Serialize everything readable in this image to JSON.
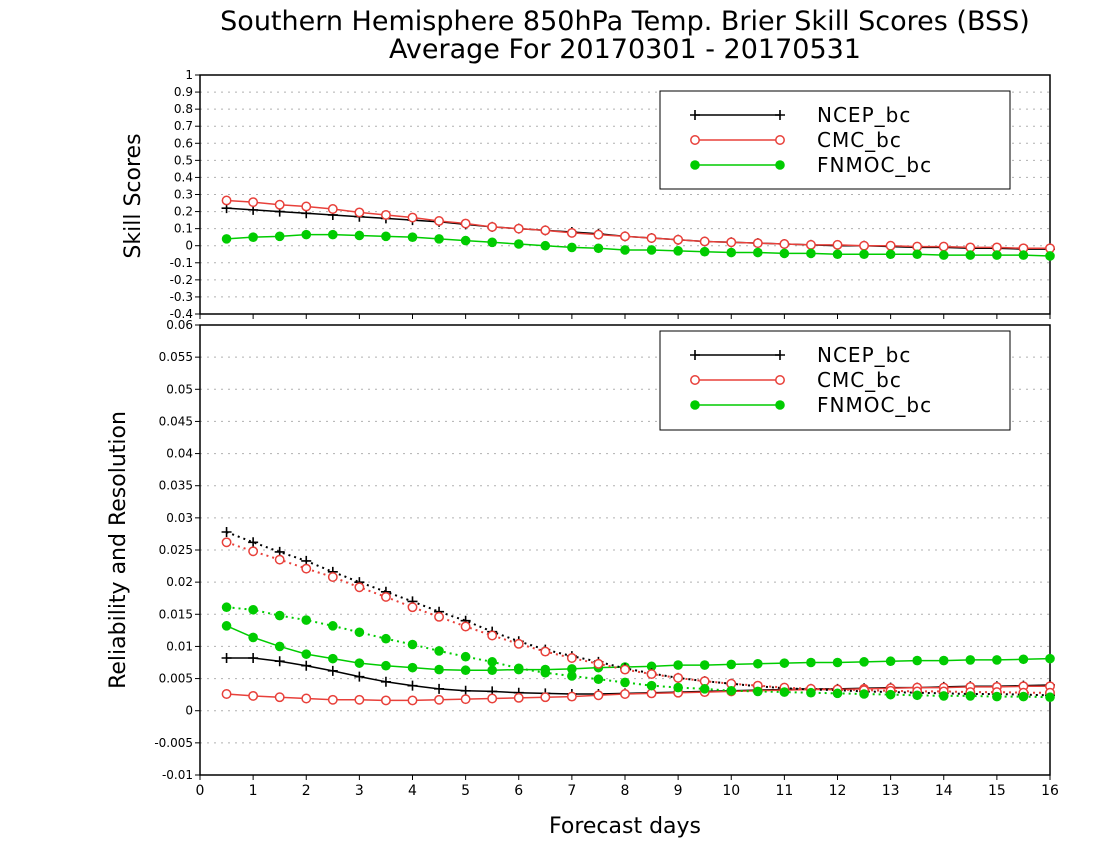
{
  "title_line1": "Southern Hemisphere 850hPa Temp. Brier Skill Scores (BSS)",
  "title_line2": "Average For 20170301 - 20170531",
  "xlabel": "Forecast days",
  "colors": {
    "NCEP_bc": "#000000",
    "CMC_bc": "#e8403a",
    "FNMOC_bc": "#00cc00"
  },
  "chart_data": [
    {
      "type": "line",
      "ylabel": "Skill Scores",
      "xlim": [
        0,
        16
      ],
      "ylim": [
        -0.4,
        1
      ],
      "x_ticks": [
        0,
        1,
        2,
        3,
        4,
        5,
        6,
        7,
        8,
        9,
        10,
        11,
        12,
        13,
        14,
        15,
        16
      ],
      "y_ticks": [
        "-0.4",
        "-0.3",
        "-0.2",
        "-0.1",
        "0",
        "0.1",
        "0.2",
        "0.3",
        "0.4",
        "0.5",
        "0.6",
        "0.7",
        "0.8",
        "0.9",
        "1"
      ],
      "grid": true,
      "legend": "top-right",
      "x": [
        0.5,
        1,
        1.5,
        2,
        2.5,
        3,
        3.5,
        4,
        4.5,
        5,
        5.5,
        6,
        6.5,
        7,
        7.5,
        8,
        8.5,
        9,
        9.5,
        10,
        10.5,
        11,
        11.5,
        12,
        12.5,
        13,
        13.5,
        14,
        14.5,
        15,
        15.5,
        16
      ],
      "series": [
        {
          "name": "NCEP_bc",
          "style": "solid",
          "marker": "plus",
          "values": [
            0.22,
            0.21,
            0.2,
            0.19,
            0.18,
            0.17,
            0.16,
            0.15,
            0.14,
            0.125,
            0.11,
            0.1,
            0.09,
            0.08,
            0.07,
            0.055,
            0.045,
            0.035,
            0.025,
            0.02,
            0.015,
            0.01,
            0.005,
            0.0,
            0.0,
            -0.005,
            -0.01,
            -0.01,
            -0.015,
            -0.015,
            -0.02,
            -0.02
          ]
        },
        {
          "name": "CMC_bc",
          "style": "solid",
          "marker": "circle",
          "values": [
            0.265,
            0.255,
            0.24,
            0.23,
            0.215,
            0.195,
            0.18,
            0.165,
            0.145,
            0.13,
            0.11,
            0.1,
            0.09,
            0.075,
            0.065,
            0.055,
            0.045,
            0.035,
            0.025,
            0.02,
            0.015,
            0.01,
            0.005,
            0.005,
            0.0,
            0.0,
            -0.005,
            -0.005,
            -0.01,
            -0.01,
            -0.015,
            -0.015
          ]
        },
        {
          "name": "FNMOC_bc",
          "style": "solid",
          "marker": "dot",
          "values": [
            0.04,
            0.05,
            0.055,
            0.065,
            0.065,
            0.06,
            0.055,
            0.05,
            0.04,
            0.03,
            0.02,
            0.01,
            0.0,
            -0.01,
            -0.015,
            -0.025,
            -0.025,
            -0.03,
            -0.035,
            -0.04,
            -0.04,
            -0.045,
            -0.045,
            -0.05,
            -0.05,
            -0.05,
            -0.05,
            -0.055,
            -0.055,
            -0.055,
            -0.055,
            -0.06
          ]
        }
      ]
    },
    {
      "type": "line",
      "ylabel": "Reliability and Resolution",
      "xlim": [
        0,
        16
      ],
      "ylim": [
        -0.01,
        0.06
      ],
      "x_ticks": [
        0,
        1,
        2,
        3,
        4,
        5,
        6,
        7,
        8,
        9,
        10,
        11,
        12,
        13,
        14,
        15,
        16
      ],
      "y_ticks": [
        "-0.01",
        "-0.005",
        "0",
        "0.005",
        "0.01",
        "0.015",
        "0.02",
        "0.025",
        "0.03",
        "0.035",
        "0.04",
        "0.045",
        "0.05",
        "0.055",
        "0.06"
      ],
      "grid": true,
      "legend": "top-right",
      "x": [
        0.5,
        1,
        1.5,
        2,
        2.5,
        3,
        3.5,
        4,
        4.5,
        5,
        5.5,
        6,
        6.5,
        7,
        7.5,
        8,
        8.5,
        9,
        9.5,
        10,
        10.5,
        11,
        11.5,
        12,
        12.5,
        13,
        13.5,
        14,
        14.5,
        15,
        15.5,
        16
      ],
      "legend_entries": [
        {
          "name": "NCEP_bc",
          "marker": "plus"
        },
        {
          "name": "CMC_bc",
          "marker": "circle"
        },
        {
          "name": "FNMOC_bc",
          "marker": "dot"
        }
      ],
      "series": [
        {
          "name": "NCEP_bc",
          "style": "solid",
          "marker": "plus",
          "values": [
            0.0082,
            0.0082,
            0.0077,
            0.007,
            0.0062,
            0.0053,
            0.0045,
            0.0039,
            0.0034,
            0.0031,
            0.003,
            0.0028,
            0.0027,
            0.0026,
            0.0026,
            0.0027,
            0.0028,
            0.0029,
            0.003,
            0.0031,
            0.0032,
            0.0033,
            0.0034,
            0.0034,
            0.0035,
            0.0036,
            0.0036,
            0.0037,
            0.0038,
            0.0038,
            0.0039,
            0.004
          ]
        },
        {
          "name": "CMC_bc",
          "style": "solid",
          "marker": "circle",
          "values": [
            0.0026,
            0.0023,
            0.0021,
            0.0019,
            0.0017,
            0.0017,
            0.0016,
            0.0016,
            0.0017,
            0.0018,
            0.0019,
            0.002,
            0.0021,
            0.0022,
            0.0024,
            0.0026,
            0.0027,
            0.0028,
            0.0029,
            0.003,
            0.0031,
            0.0032,
            0.0033,
            0.0033,
            0.0034,
            0.0035,
            0.0036,
            0.0036,
            0.0037,
            0.0037,
            0.0038,
            0.0038
          ]
        },
        {
          "name": "FNMOC_bc",
          "style": "solid",
          "marker": "dot",
          "values": [
            0.0132,
            0.0114,
            0.01,
            0.0088,
            0.0081,
            0.0074,
            0.007,
            0.0067,
            0.0064,
            0.0063,
            0.0063,
            0.0064,
            0.0064,
            0.0065,
            0.0067,
            0.0068,
            0.0069,
            0.0071,
            0.0071,
            0.0072,
            0.0073,
            0.0074,
            0.0075,
            0.0075,
            0.0076,
            0.0077,
            0.0078,
            0.0078,
            0.0079,
            0.0079,
            0.008,
            0.0081
          ]
        },
        {
          "name": "NCEP_bc",
          "style": "dotted",
          "marker": "plus",
          "values": [
            0.0278,
            0.0262,
            0.0247,
            0.0233,
            0.0216,
            0.02,
            0.0185,
            0.017,
            0.0154,
            0.014,
            0.0123,
            0.0108,
            0.0095,
            0.0085,
            0.0076,
            0.0066,
            0.0058,
            0.0051,
            0.0046,
            0.0042,
            0.0038,
            0.0035,
            0.0033,
            0.0032,
            0.003,
            0.0029,
            0.0028,
            0.0027,
            0.0026,
            0.0026,
            0.0025,
            0.0024
          ]
        },
        {
          "name": "CMC_bc",
          "style": "dotted",
          "marker": "circle",
          "values": [
            0.0262,
            0.0248,
            0.0235,
            0.0221,
            0.0208,
            0.0192,
            0.0177,
            0.0161,
            0.0146,
            0.0131,
            0.0117,
            0.0104,
            0.0092,
            0.0082,
            0.0073,
            0.0064,
            0.0057,
            0.0051,
            0.0046,
            0.0042,
            0.0039,
            0.0036,
            0.0034,
            0.0033,
            0.0032,
            0.0031,
            0.003,
            0.003,
            0.0029,
            0.0029,
            0.0028,
            0.0028
          ]
        },
        {
          "name": "FNMOC_bc",
          "style": "dotted",
          "marker": "dot",
          "values": [
            0.0161,
            0.0157,
            0.0148,
            0.0141,
            0.0132,
            0.0122,
            0.0112,
            0.0103,
            0.0093,
            0.0084,
            0.0076,
            0.0066,
            0.0059,
            0.0054,
            0.0049,
            0.0044,
            0.0039,
            0.0036,
            0.0034,
            0.0031,
            0.003,
            0.0029,
            0.0028,
            0.0027,
            0.0026,
            0.0025,
            0.0024,
            0.0023,
            0.0023,
            0.0022,
            0.0022,
            0.0021
          ]
        }
      ]
    }
  ]
}
